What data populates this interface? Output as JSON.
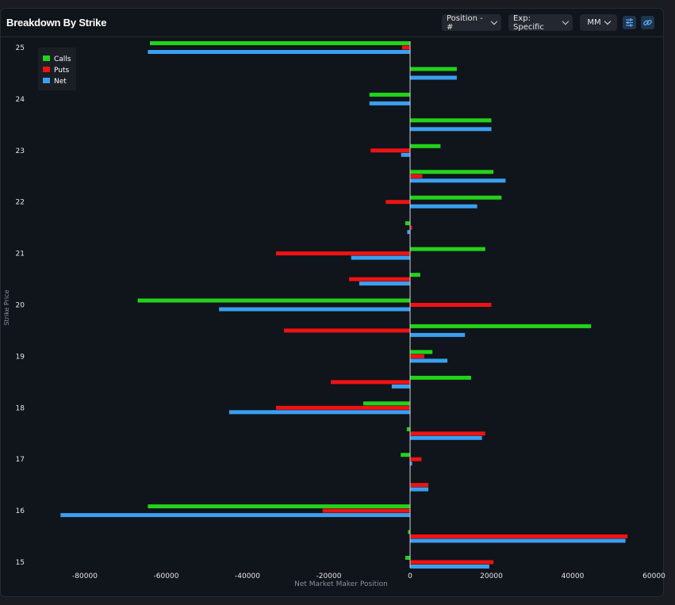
{
  "header": {
    "title": "Breakdown By Strike",
    "controls": [
      {
        "label": "Position - #"
      },
      {
        "label": "Exp: Specific"
      },
      {
        "label": "MM"
      }
    ],
    "icon_buttons": [
      "settings-sliders-icon",
      "link-icon"
    ]
  },
  "colors": {
    "calls": "#22d31a",
    "puts": "#f01212",
    "net": "#3aa0f0",
    "background": "#10141b"
  },
  "chart_data": {
    "type": "bar",
    "orientation": "horizontal",
    "xlabel": "Net Market Maker Position",
    "ylabel": "Strike Price",
    "xlim": [
      -85000,
      60000
    ],
    "ylim": [
      15,
      25
    ],
    "xticks": [
      -80000,
      -60000,
      -40000,
      -20000,
      0,
      20000,
      40000,
      60000
    ],
    "yticks": [
      25,
      24,
      23,
      22,
      21,
      20,
      19,
      18,
      17,
      16,
      15
    ],
    "legend_position": "top-left",
    "categories": [
      25,
      24.5,
      24,
      23.5,
      23,
      22.5,
      22,
      21.5,
      21,
      20.5,
      20,
      19.5,
      19,
      18.5,
      18,
      17.5,
      17,
      16.5,
      16,
      15.5,
      15
    ],
    "series": [
      {
        "name": "Calls",
        "values": [
          -64000,
          11500,
          -10000,
          20000,
          7500,
          20500,
          22500,
          -1200,
          18500,
          2500,
          -67000,
          44500,
          5500,
          15000,
          -11500,
          -800,
          -2300,
          0,
          -64500,
          -500,
          -1200
        ]
      },
      {
        "name": "Puts",
        "values": [
          -2000,
          0,
          0,
          0,
          -9700,
          3000,
          -6000,
          500,
          -33000,
          -15000,
          20000,
          -31000,
          3500,
          -19500,
          -33000,
          18500,
          2800,
          4500,
          -21500,
          53500,
          20500
        ]
      },
      {
        "name": "Net",
        "values": [
          -64500,
          11500,
          -10000,
          20000,
          -2200,
          23500,
          16500,
          -700,
          -14500,
          -12500,
          -47000,
          13500,
          9200,
          -4500,
          -44500,
          17700,
          500,
          4500,
          -86000,
          53000,
          19500
        ]
      }
    ]
  }
}
